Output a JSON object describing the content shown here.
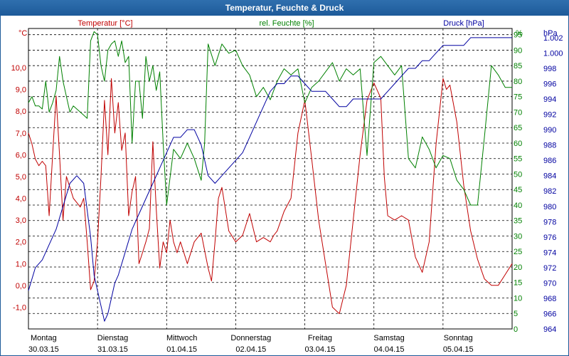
{
  "window": {
    "title": "Temperatur, Feuchte & Druck"
  },
  "chart_data": {
    "type": "line",
    "title": "Temperatur, Feuchte & Druck",
    "x_range": [
      0,
      7
    ],
    "days": [
      {
        "day": "Montag",
        "date": "30.03.15"
      },
      {
        "day": "Dienstag",
        "date": "31.03.15"
      },
      {
        "day": "Mittwoch",
        "date": "01.04.15"
      },
      {
        "day": "Donnerstag",
        "date": "02.04.15"
      },
      {
        "day": "Freitag",
        "date": "03.04.15"
      },
      {
        "day": "Samstag",
        "date": "04.04.15"
      },
      {
        "day": "Sonntag",
        "date": "05.04.15"
      }
    ],
    "axes": {
      "temperature": {
        "label": "Temperatur [°C]",
        "unit": "°C",
        "color": "#c00000",
        "range": [
          -2.0,
          11.8
        ],
        "ticks": [
          "-1,0",
          "0,0",
          "1,0",
          "2,0",
          "3,0",
          "4,0",
          "5,0",
          "6,0",
          "7,0",
          "8,0",
          "9,0",
          "10,0"
        ],
        "tick_values": [
          -1,
          0,
          1,
          2,
          3,
          4,
          5,
          6,
          7,
          8,
          9,
          10
        ]
      },
      "humidity": {
        "label": "rel. Feuchte [%]",
        "unit": "%",
        "color": "#008000",
        "range": [
          0,
          97
        ],
        "ticks": [
          "0",
          "5",
          "10",
          "15",
          "20",
          "25",
          "30",
          "35",
          "40",
          "45",
          "50",
          "55",
          "60",
          "65",
          "70",
          "75",
          "80",
          "85",
          "90",
          "95"
        ],
        "tick_values": [
          0,
          5,
          10,
          15,
          20,
          25,
          30,
          35,
          40,
          45,
          50,
          55,
          60,
          65,
          70,
          75,
          80,
          85,
          90,
          95
        ]
      },
      "pressure": {
        "label": "Druck [hPa]",
        "unit": "hPa",
        "color": "#0000a0",
        "range": [
          964,
          1003.2
        ],
        "ticks": [
          "964",
          "966",
          "968",
          "970",
          "972",
          "974",
          "976",
          "978",
          "980",
          "982",
          "984",
          "986",
          "988",
          "990",
          "992",
          "994",
          "996",
          "998",
          "1.000",
          "1.002"
        ],
        "tick_values": [
          964,
          966,
          968,
          970,
          972,
          974,
          976,
          978,
          980,
          982,
          984,
          986,
          988,
          990,
          992,
          994,
          996,
          998,
          1000,
          1002
        ]
      }
    },
    "series": [
      {
        "name": "Temperatur [°C]",
        "axis": "temperature",
        "color": "#c00000",
        "x": [
          0,
          0.05,
          0.1,
          0.15,
          0.2,
          0.25,
          0.3,
          0.35,
          0.4,
          0.45,
          0.5,
          0.55,
          0.6,
          0.65,
          0.7,
          0.75,
          0.8,
          0.85,
          0.9,
          0.95,
          1.0,
          1.05,
          1.1,
          1.15,
          1.2,
          1.25,
          1.3,
          1.35,
          1.4,
          1.45,
          1.5,
          1.55,
          1.6,
          1.65,
          1.7,
          1.75,
          1.8,
          1.85,
          1.9,
          1.95,
          2.0,
          2.05,
          2.1,
          2.15,
          2.2,
          2.3,
          2.4,
          2.5,
          2.55,
          2.6,
          2.65,
          2.7,
          2.75,
          2.8,
          2.9,
          3.0,
          3.1,
          3.2,
          3.3,
          3.4,
          3.5,
          3.55,
          3.6,
          3.7,
          3.8,
          3.9,
          4.0,
          4.1,
          4.2,
          4.3,
          4.4,
          4.5,
          4.6,
          4.7,
          4.8,
          4.9,
          5.0,
          5.1,
          5.15,
          5.2,
          5.3,
          5.4,
          5.5,
          5.6,
          5.7,
          5.8,
          5.9,
          6.0,
          6.05,
          6.1,
          6.2,
          6.3,
          6.4,
          6.5,
          6.6,
          6.7,
          6.8,
          6.9,
          7.0
        ],
        "y": [
          7.0,
          6.5,
          5.8,
          5.5,
          5.7,
          5.5,
          3.2,
          6.0,
          8.7,
          6.0,
          3.0,
          5.0,
          4.5,
          4.0,
          3.8,
          3.6,
          4.0,
          2.0,
          -0.2,
          0.2,
          2.0,
          5.0,
          8.5,
          6.0,
          9.5,
          7.0,
          8.4,
          6.2,
          7.0,
          3.2,
          4.3,
          5.0,
          1.0,
          1.5,
          2.0,
          2.6,
          6.6,
          3.5,
          0.8,
          2.0,
          1.5,
          3.0,
          2.0,
          1.5,
          2.0,
          1.0,
          2.0,
          2.4,
          1.6,
          0.8,
          0.2,
          2.0,
          4.0,
          4.5,
          2.5,
          2.0,
          2.3,
          3.3,
          2.0,
          2.2,
          2.0,
          2.3,
          2.5,
          3.4,
          4.0,
          7.0,
          8.5,
          5.8,
          3.0,
          1.0,
          -1.0,
          -1.3,
          0.0,
          3.0,
          6.0,
          8.5,
          9.3,
          8.6,
          5.0,
          3.2,
          3.0,
          3.2,
          3.0,
          1.3,
          0.6,
          2.0,
          6.5,
          9.5,
          9.0,
          9.2,
          7.5,
          4.6,
          2.5,
          1.2,
          0.3,
          0.0,
          0.0,
          0.5,
          1.0
        ]
      },
      {
        "name": "rel. Feuchte [%]",
        "axis": "humidity",
        "color": "#008000",
        "x": [
          0,
          0.05,
          0.1,
          0.15,
          0.2,
          0.25,
          0.3,
          0.35,
          0.4,
          0.45,
          0.5,
          0.55,
          0.6,
          0.65,
          0.7,
          0.75,
          0.8,
          0.85,
          0.9,
          0.95,
          1.0,
          1.05,
          1.1,
          1.15,
          1.2,
          1.25,
          1.3,
          1.35,
          1.4,
          1.45,
          1.5,
          1.55,
          1.6,
          1.65,
          1.7,
          1.75,
          1.8,
          1.85,
          1.9,
          1.95,
          2.0,
          2.1,
          2.2,
          2.3,
          2.4,
          2.5,
          2.55,
          2.6,
          2.7,
          2.8,
          2.9,
          3.0,
          3.1,
          3.2,
          3.3,
          3.4,
          3.5,
          3.6,
          3.7,
          3.8,
          3.9,
          4.0,
          4.1,
          4.2,
          4.3,
          4.4,
          4.5,
          4.6,
          4.7,
          4.8,
          4.9,
          5.0,
          5.1,
          5.2,
          5.3,
          5.4,
          5.5,
          5.6,
          5.7,
          5.8,
          5.9,
          6.0,
          6.1,
          6.2,
          6.3,
          6.4,
          6.5,
          6.6,
          6.7,
          6.8,
          6.9,
          7.0
        ],
        "y": [
          73,
          75,
          72,
          72,
          71,
          80,
          70,
          73,
          77,
          88,
          80,
          75,
          70,
          72,
          71,
          70,
          69,
          68,
          93,
          96,
          95,
          85,
          80,
          90,
          92,
          93,
          88,
          93,
          86,
          88,
          60,
          80,
          80,
          68,
          88,
          80,
          85,
          77,
          83,
          60,
          40,
          58,
          55,
          60,
          55,
          48,
          60,
          92,
          85,
          92,
          89,
          90,
          85,
          82,
          75,
          78,
          74,
          80,
          84,
          82,
          84,
          73,
          78,
          80,
          83,
          86,
          80,
          84,
          82,
          84,
          56,
          86,
          88,
          85,
          82,
          85,
          55,
          52,
          62,
          58,
          52,
          56,
          55,
          48,
          45,
          40,
          40,
          62,
          85,
          82,
          78,
          78
        ]
      },
      {
        "name": "Druck [hPa]",
        "axis": "pressure",
        "color": "#0000a0",
        "x": [
          0,
          0.1,
          0.2,
          0.3,
          0.4,
          0.5,
          0.6,
          0.7,
          0.8,
          0.9,
          0.95,
          1.0,
          1.05,
          1.1,
          1.15,
          1.2,
          1.25,
          1.3,
          1.4,
          1.5,
          1.6,
          1.7,
          1.8,
          1.9,
          2.0,
          2.1,
          2.2,
          2.3,
          2.4,
          2.5,
          2.6,
          2.7,
          2.8,
          2.9,
          3.0,
          3.1,
          3.2,
          3.3,
          3.4,
          3.5,
          3.6,
          3.7,
          3.8,
          3.9,
          4.0,
          4.1,
          4.2,
          4.3,
          4.4,
          4.5,
          4.6,
          4.7,
          4.8,
          4.9,
          5.0,
          5.1,
          5.2,
          5.3,
          5.4,
          5.5,
          5.6,
          5.7,
          5.8,
          5.9,
          6.0,
          6.1,
          6.2,
          6.3,
          6.4,
          6.5,
          6.6,
          6.7,
          6.8,
          6.9,
          7.0
        ],
        "y": [
          969,
          972,
          973,
          975,
          977,
          980,
          983,
          984,
          983,
          976,
          971,
          969,
          967,
          965,
          966,
          968,
          970,
          971,
          974,
          977,
          979,
          981,
          983,
          985,
          987,
          989,
          989,
          990,
          990,
          988,
          984,
          983,
          984,
          985,
          986,
          987,
          989,
          991,
          993,
          995,
          996,
          996,
          997,
          997,
          996,
          995,
          995,
          995,
          994,
          993,
          993,
          994,
          994,
          994,
          994,
          994,
          995,
          996,
          997,
          998,
          998,
          999,
          999,
          1000,
          1001,
          1001,
          1001,
          1001,
          1002,
          1002,
          1002,
          1002,
          1002,
          1002,
          1002
        ]
      }
    ]
  }
}
